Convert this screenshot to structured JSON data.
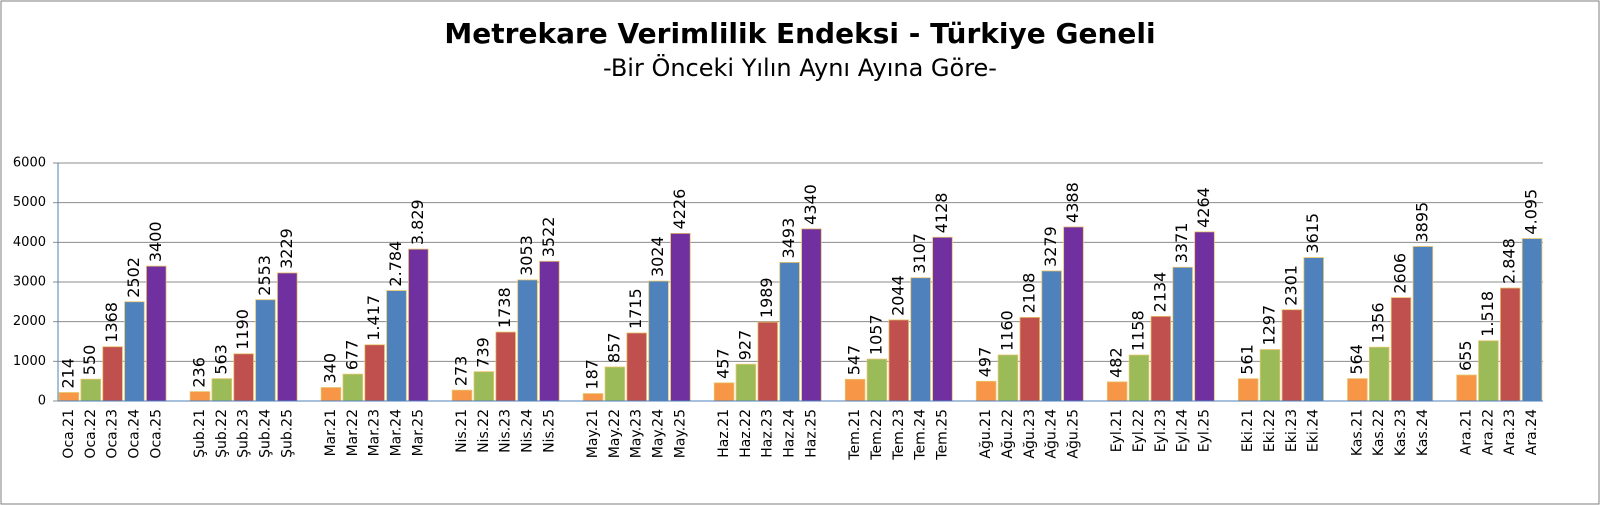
{
  "chart_data": {
    "type": "bar",
    "title": "Metrekare Verimlilik Endeksi - Türkiye Geneli",
    "subtitle": "-Bir Önceki Yılın Aynı Ayına Göre-",
    "categories": [
      "Oca.21",
      "Oca.22",
      "Oca.23",
      "Oca.24",
      "Oca.25",
      null,
      "Şub.21",
      "Şub.22",
      "Şub.23",
      "Şub.24",
      "Şub.25",
      null,
      "Mar.21",
      "Mar.22",
      "Mar.23",
      "Mar.24",
      "Mar.25",
      null,
      "Nis.21",
      "Nis.22",
      "Nis.23",
      "Nis.24",
      "Nis.25",
      null,
      "May.21",
      "May.22",
      "May.23",
      "May.24",
      "May.25",
      null,
      "Haz.21",
      "Haz.22",
      "Haz.23",
      "Haz.24",
      "Haz.25",
      null,
      "Tem.21",
      "Tem.22",
      "Tem.23",
      "Tem.24",
      "Tem.25",
      null,
      "Ağu.21",
      "Ağu.22",
      "Ağu.23",
      "Ağu.24",
      "Ağu.25",
      null,
      "Eyl.21",
      "Eyl.22",
      "Eyl.23",
      "Eyl.24",
      "Eyl.25",
      null,
      "Eki.21",
      "Eki.22",
      "Eki.23",
      "Eki.24",
      null,
      "Kas.21",
      "Kas.22",
      "Kas.23",
      "Kas.24",
      null,
      "Ara.21",
      "Ara.22",
      "Ara.23",
      "Ara.24"
    ],
    "values": [
      214,
      550,
      1368,
      2502,
      3400,
      null,
      236,
      563,
      1190,
      2553,
      3229,
      null,
      340,
      677,
      1417,
      2784,
      3829,
      null,
      273,
      739,
      1738,
      3053,
      3522,
      null,
      187,
      857,
      1715,
      3024,
      4226,
      null,
      457,
      927,
      1989,
      3493,
      4340,
      null,
      547,
      1057,
      2044,
      3107,
      4128,
      null,
      497,
      1160,
      2108,
      3279,
      4388,
      null,
      482,
      1158,
      2134,
      3371,
      4264,
      null,
      561,
      1297,
      2301,
      3615,
      null,
      564,
      1356,
      2606,
      3895,
      null,
      655,
      1518,
      2848,
      4095
    ],
    "value_labels": [
      "214",
      "550",
      "1368",
      "2502",
      "3400",
      null,
      "236",
      "563",
      "1190",
      "2553",
      "3229",
      null,
      "340",
      "677",
      "1.417",
      "2.784",
      "3.829",
      null,
      "273",
      "739",
      "1738",
      "3053",
      "3522",
      null,
      "187",
      "857",
      "1715",
      "3024",
      "4226",
      null,
      "457",
      "927",
      "1989",
      "3493",
      "4340",
      null,
      "547",
      "1057",
      "2044",
      "3107",
      "4128",
      null,
      "497",
      "1160",
      "2108",
      "3279",
      "4388",
      null,
      "482",
      "1158",
      "2134",
      "3371",
      "4264",
      null,
      "561",
      "1297",
      "2301",
      "3615",
      null,
      "564",
      "1356",
      "2606",
      "3895",
      null,
      "655",
      "1.518",
      "2.848",
      "4.095"
    ],
    "colors": [
      "#f79646",
      "#9bbb59",
      "#c0504d",
      "#4f81bd",
      "#7030a0",
      null,
      "#f79646",
      "#9bbb59",
      "#c0504d",
      "#4f81bd",
      "#7030a0",
      null,
      "#f79646",
      "#9bbb59",
      "#c0504d",
      "#4f81bd",
      "#7030a0",
      null,
      "#f79646",
      "#9bbb59",
      "#c0504d",
      "#4f81bd",
      "#7030a0",
      null,
      "#f79646",
      "#9bbb59",
      "#c0504d",
      "#4f81bd",
      "#7030a0",
      null,
      "#f79646",
      "#9bbb59",
      "#c0504d",
      "#4f81bd",
      "#7030a0",
      null,
      "#f79646",
      "#9bbb59",
      "#c0504d",
      "#4f81bd",
      "#7030a0",
      null,
      "#f79646",
      "#9bbb59",
      "#c0504d",
      "#4f81bd",
      "#7030a0",
      null,
      "#f79646",
      "#9bbb59",
      "#c0504d",
      "#4f81bd",
      "#7030a0",
      null,
      "#f79646",
      "#9bbb59",
      "#c0504d",
      "#4f81bd",
      null,
      "#f79646",
      "#9bbb59",
      "#c0504d",
      "#4f81bd",
      null,
      "#f79646",
      "#9bbb59",
      "#c0504d",
      "#4f81bd"
    ],
    "ylim": [
      0,
      6000
    ],
    "yticks": [
      0,
      1000,
      2000,
      3000,
      4000,
      5000,
      6000
    ],
    "grid": true
  }
}
